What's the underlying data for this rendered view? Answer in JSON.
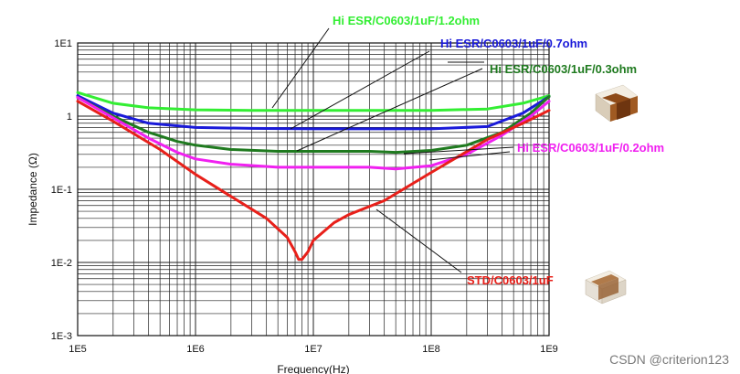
{
  "chart_data": {
    "type": "line",
    "xscale": "log",
    "yscale": "log",
    "xlim": [
      100000,
      1000000000
    ],
    "ylim": [
      0.001,
      10
    ],
    "xlabel": "Frequency(Hz)",
    "ylabel": "Impedance (Ω)",
    "x_ticks": [
      "1E5",
      "1E6",
      "1E7",
      "1E8",
      "1E9"
    ],
    "y_ticks": [
      "1E-3",
      "1E-2",
      "1E-1",
      "1",
      "1E1"
    ],
    "grid": true,
    "series": [
      {
        "name": "Hi ESR/C0603/1uF/1.2ohm",
        "color": "#33ee33",
        "x": [
          100000,
          200000,
          400000,
          1000000,
          3000000,
          10000000,
          30000000,
          100000000,
          300000000,
          600000000,
          1000000000
        ],
        "y": [
          2.1,
          1.5,
          1.3,
          1.22,
          1.2,
          1.2,
          1.2,
          1.2,
          1.25,
          1.5,
          1.9
        ]
      },
      {
        "name": "Hi ESR/C0603/1uF/0.7ohm",
        "color": "#1a1ad9",
        "x": [
          100000,
          200000,
          400000,
          1000000,
          3000000,
          10000000,
          30000000,
          100000000,
          300000000,
          600000000,
          1000000000
        ],
        "y": [
          1.9,
          1.1,
          0.8,
          0.7,
          0.68,
          0.67,
          0.67,
          0.67,
          0.72,
          1.1,
          1.85
        ]
      },
      {
        "name": "Hi ESR/C0603/1uF/0.3ohm",
        "color": "#1f7a1f",
        "x": [
          100000,
          200000,
          400000,
          700000,
          1000000,
          2000000,
          5000000,
          10000000,
          30000000,
          50000000,
          100000000,
          200000000,
          400000000,
          700000000,
          1000000000
        ],
        "y": [
          1.8,
          1.0,
          0.6,
          0.45,
          0.4,
          0.35,
          0.33,
          0.33,
          0.33,
          0.32,
          0.34,
          0.4,
          0.6,
          1.1,
          1.85
        ]
      },
      {
        "name": "Hi ESR/C0603/1uF/0.2ohm",
        "color": "#f020f0",
        "x": [
          100000,
          200000,
          400000,
          700000,
          1000000,
          2000000,
          5000000,
          10000000,
          30000000,
          50000000,
          100000000,
          200000000,
          400000000,
          700000000,
          1000000000
        ],
        "y": [
          1.8,
          0.95,
          0.5,
          0.32,
          0.26,
          0.22,
          0.2,
          0.2,
          0.2,
          0.19,
          0.21,
          0.3,
          0.55,
          1.0,
          1.6
        ]
      },
      {
        "name": "STD/C0603/1uF",
        "color": "#e8201a",
        "x": [
          100000,
          200000,
          500000,
          1000000,
          2000000,
          4000000,
          6000000,
          7000000,
          7500000,
          8000000,
          9000000,
          10000000,
          15000000,
          20000000,
          40000000,
          100000000,
          300000000,
          600000000,
          1000000000
        ],
        "y": [
          1.6,
          0.85,
          0.35,
          0.16,
          0.08,
          0.04,
          0.022,
          0.014,
          0.011,
          0.011,
          0.014,
          0.02,
          0.035,
          0.045,
          0.07,
          0.17,
          0.48,
          0.8,
          1.2
        ]
      }
    ]
  },
  "annotations": {
    "label_1_2ohm": "Hi ESR/C0603/1uF/1.2ohm",
    "label_0_7ohm": "Hi ESR/C0603/1uF/0.7ohm",
    "label_0_3ohm": "Hi ESR/C0603/1uF/0.3ohm",
    "label_0_2ohm": "Hi ESR/C0603/1uF/0.2ohm",
    "label_std": "STD/C0603/1uF"
  },
  "watermark": "CSDN @criterion123"
}
